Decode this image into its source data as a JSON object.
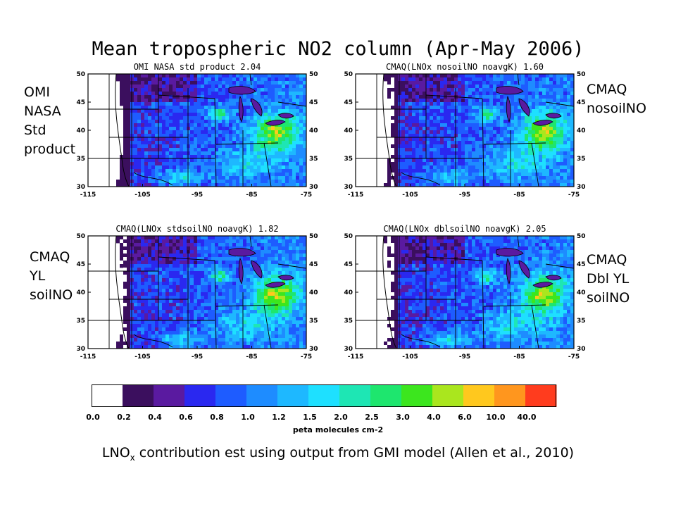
{
  "title": "Mean tropospheric NO2 column (Apr-May 2006)",
  "panels": [
    {
      "id": "omi",
      "title": "OMI NASA std product 2.04",
      "label": [
        "OMI",
        "NASA",
        "Std",
        "product"
      ],
      "variant": 0
    },
    {
      "id": "nosoil",
      "title": "CMAQ(LNOx nosoilNO noavgK) 1.60",
      "label": [
        "CMAQ",
        "nosoilNO"
      ],
      "variant": 1
    },
    {
      "id": "stdsoil",
      "title": "CMAQ(LNOx stdsoilNO noavgK) 1.82",
      "label": [
        "CMAQ",
        "YL",
        "soilNO"
      ],
      "variant": 2
    },
    {
      "id": "dblsoil",
      "title": "CMAQ(LNOx dblsoilNO noavgK) 2.05",
      "label": [
        "CMAQ",
        "Dbl YL",
        "soilNO"
      ],
      "variant": 3
    }
  ],
  "axes": {
    "lat_ticks": [
      "50",
      "45",
      "40",
      "35",
      "30"
    ],
    "lon_ticks": [
      "-115",
      "-105",
      "-95",
      "-85",
      "-75"
    ]
  },
  "colorbar": {
    "colors": [
      "#ffffff",
      "#3b0f5e",
      "#5a1aa0",
      "#2a28f0",
      "#1e5cff",
      "#1e8cff",
      "#1eb8ff",
      "#1ee0ff",
      "#1ee6b4",
      "#1ee66e",
      "#3ce61e",
      "#aae61e",
      "#ffc81e",
      "#ff961e",
      "#ff3c1e"
    ],
    "ticks": [
      "0.0",
      "0.2",
      "0.4",
      "0.6",
      "0.8",
      "1.0",
      "1.2",
      "1.5",
      "2.0",
      "2.5",
      "3.0",
      "4.0",
      "6.0",
      "10.0",
      "40.0"
    ],
    "unit": "peta molecules cm-2"
  },
  "caption": {
    "prefix": "LNO",
    "sub": "x",
    "suffix": " contribution est using output from GMI model (Allen et al., 2010)"
  }
}
